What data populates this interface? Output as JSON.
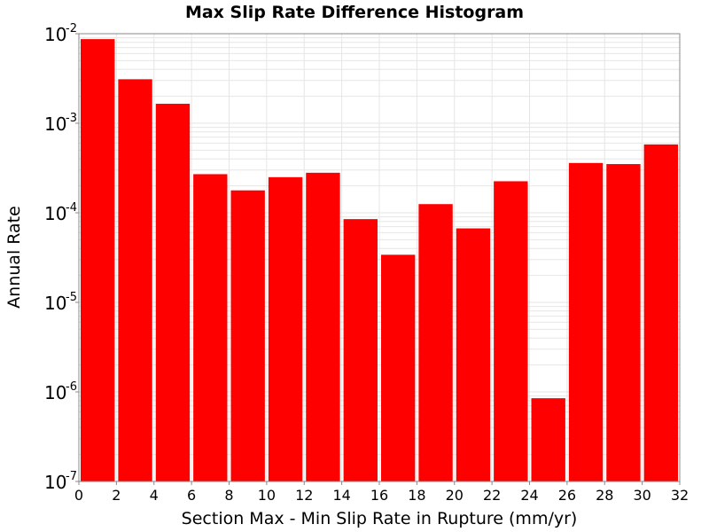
{
  "chart_data": {
    "type": "bar",
    "title": "Max Slip Rate Difference Histogram",
    "xlabel": "Section Max - Min Slip Rate in Rupture (mm/yr)",
    "ylabel": "Annual Rate",
    "xlim": [
      0,
      32
    ],
    "ylim": [
      1e-07,
      0.01
    ],
    "yscale": "log",
    "grid": true,
    "bar_color": "#ff0000",
    "bin_width": 2,
    "bins": [
      {
        "x0": 0,
        "x1": 2,
        "value": 0.0087
      },
      {
        "x0": 2,
        "x1": 4,
        "value": 0.0031
      },
      {
        "x0": 4,
        "x1": 6,
        "value": 0.00165
      },
      {
        "x0": 6,
        "x1": 8,
        "value": 0.00027
      },
      {
        "x0": 8,
        "x1": 10,
        "value": 0.000178
      },
      {
        "x0": 10,
        "x1": 12,
        "value": 0.00025
      },
      {
        "x0": 12,
        "x1": 14,
        "value": 0.00028
      },
      {
        "x0": 14,
        "x1": 16,
        "value": 8.5e-05
      },
      {
        "x0": 16,
        "x1": 18,
        "value": 3.4e-05
      },
      {
        "x0": 18,
        "x1": 20,
        "value": 0.000125
      },
      {
        "x0": 20,
        "x1": 22,
        "value": 6.7e-05
      },
      {
        "x0": 22,
        "x1": 24,
        "value": 0.000225
      },
      {
        "x0": 24,
        "x1": 26,
        "value": 8.5e-07
      },
      {
        "x0": 26,
        "x1": 28,
        "value": 0.00036
      },
      {
        "x0": 28,
        "x1": 30,
        "value": 0.00035
      },
      {
        "x0": 30,
        "x1": 32,
        "value": 0.00058
      }
    ],
    "x_ticks": [
      "0",
      "2",
      "4",
      "6",
      "8",
      "10",
      "12",
      "14",
      "16",
      "18",
      "20",
      "22",
      "24",
      "26",
      "28",
      "30",
      "32"
    ],
    "y_ticks": [
      {
        "base": "10",
        "exp": "-7",
        "value": 1e-07
      },
      {
        "base": "10",
        "exp": "-6",
        "value": 1e-06
      },
      {
        "base": "10",
        "exp": "-5",
        "value": 1e-05
      },
      {
        "base": "10",
        "exp": "-4",
        "value": 0.0001
      },
      {
        "base": "10",
        "exp": "-3",
        "value": 0.001
      },
      {
        "base": "10",
        "exp": "-2",
        "value": 0.01
      }
    ]
  }
}
